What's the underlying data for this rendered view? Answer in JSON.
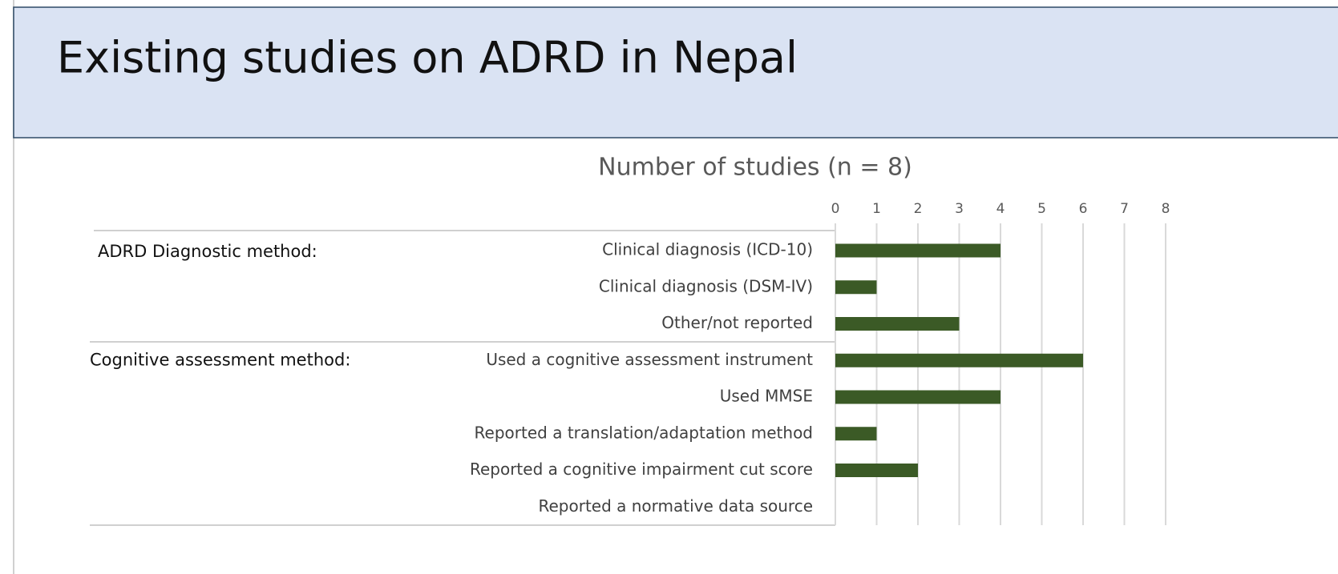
{
  "title": "Existing studies on ADRD in Nepal",
  "chart_data": {
    "type": "bar",
    "orientation": "horizontal",
    "title": "Number of studies (n = 8)",
    "color": "#3b5a26",
    "groups": [
      {
        "name": "ADRD Diagnostic method:",
        "categories": [
          "Clinical diagnosis (ICD-10)",
          "Clinical diagnosis (DSM-IV)",
          "Other/not reported"
        ],
        "values": [
          4,
          1,
          3
        ]
      },
      {
        "name": "Cognitive assessment method:",
        "categories": [
          "Used a cognitive assessment instrument",
          "Used MMSE",
          "Reported a translation/adaptation method",
          "Reported a cognitive impairment cut score",
          "Reported a normative data source"
        ],
        "values": [
          6,
          4,
          1,
          2,
          0
        ]
      }
    ],
    "xlim": [
      0,
      8
    ],
    "xticks": [
      0,
      1,
      2,
      3,
      4,
      5,
      6,
      7,
      8
    ],
    "grid": true,
    "xaxis_position": "top"
  }
}
